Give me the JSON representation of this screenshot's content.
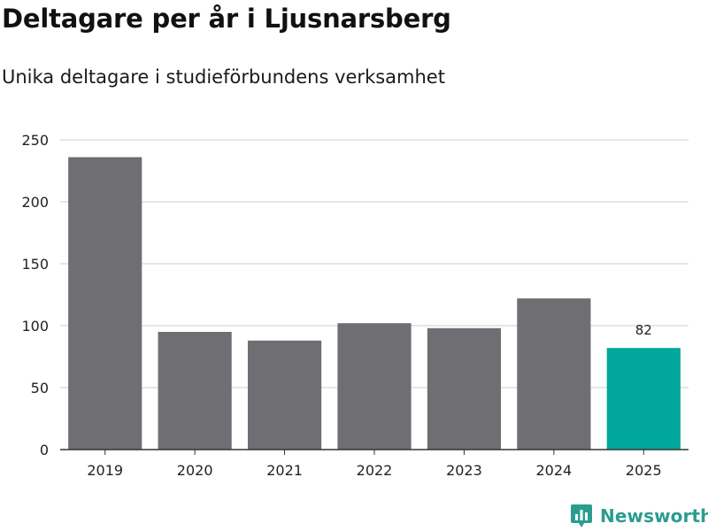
{
  "header": {
    "title": "Deltagare per år i Ljusnarsberg",
    "subtitle": "Unika deltagare i studieförbundens verksamhet"
  },
  "chart_data": {
    "type": "bar",
    "categories": [
      "2019",
      "2020",
      "2021",
      "2022",
      "2023",
      "2024",
      "2025"
    ],
    "values": [
      236,
      95,
      88,
      102,
      98,
      122,
      82
    ],
    "ylim": [
      0,
      250
    ],
    "yticks": [
      0,
      50,
      100,
      150,
      200,
      250
    ],
    "xlabel": "",
    "ylabel": "",
    "grid": true,
    "highlight_index": 6,
    "data_labels": [
      {
        "category": "2025",
        "text": "82"
      }
    ],
    "colors": {
      "bar": "#6f6e73",
      "highlight": "#00a79a",
      "grid": "#dddddd",
      "axis": "#333333",
      "text": "#222222"
    }
  },
  "brand": {
    "name": "Newsworthy",
    "color": "#2a9d8f"
  }
}
